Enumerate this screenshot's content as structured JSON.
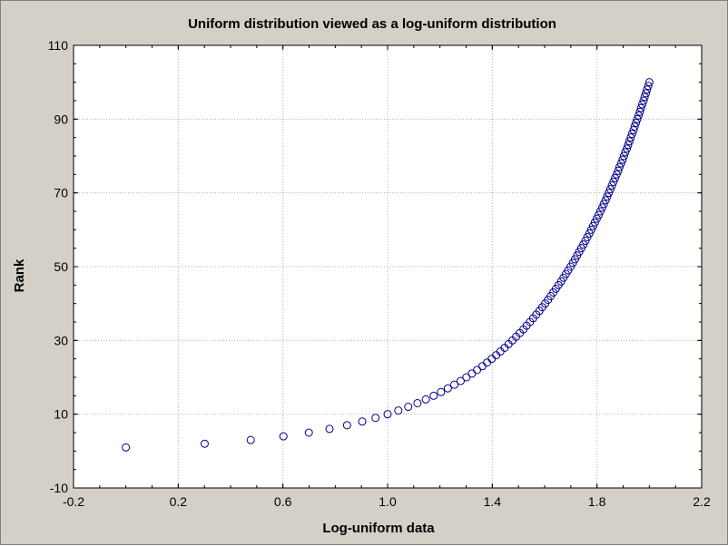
{
  "chart_data": {
    "type": "scatter",
    "title": "Uniform distribution viewed as a log-uniform distribution",
    "xlabel": "Log-uniform data",
    "ylabel": "Rank",
    "xlim": [
      -0.2,
      2.2
    ],
    "ylim": [
      -10,
      110
    ],
    "x_ticks": [
      "-0.2",
      "0.2",
      "0.6",
      "1.0",
      "1.4",
      "1.8",
      "2.2"
    ],
    "y_ticks": [
      "-10",
      "10",
      "30",
      "50",
      "70",
      "90",
      "110"
    ],
    "x_tick_values": [
      -0.2,
      0.2,
      0.6,
      1.0,
      1.4,
      1.8,
      2.2
    ],
    "y_tick_values": [
      -10,
      10,
      30,
      50,
      70,
      90,
      110
    ],
    "grid": true,
    "marker": "open-circle",
    "marker_color": "#00008b",
    "series": [
      {
        "x": [
          0.0,
          0.301,
          0.477,
          0.602,
          0.699,
          0.778,
          0.845,
          0.903,
          0.954,
          1.0,
          1.041,
          1.079,
          1.114,
          1.146,
          1.176,
          1.204,
          1.23,
          1.255,
          1.279,
          1.301,
          1.322,
          1.342,
          1.362,
          1.38,
          1.398,
          1.415,
          1.431,
          1.447,
          1.462,
          1.477,
          1.491,
          1.505,
          1.519,
          1.531,
          1.544,
          1.556,
          1.568,
          1.58,
          1.591,
          1.602,
          1.613,
          1.623,
          1.633,
          1.643,
          1.653,
          1.663,
          1.672,
          1.681,
          1.69,
          1.699,
          1.708,
          1.716,
          1.724,
          1.732,
          1.74,
          1.748,
          1.756,
          1.763,
          1.771,
          1.778,
          1.785,
          1.792,
          1.799,
          1.806,
          1.813,
          1.82,
          1.826,
          1.833,
          1.839,
          1.845,
          1.851,
          1.857,
          1.863,
          1.869,
          1.875,
          1.881,
          1.886,
          1.892,
          1.898,
          1.903,
          1.908,
          1.914,
          1.919,
          1.924,
          1.929,
          1.934,
          1.94,
          1.944,
          1.949,
          1.954,
          1.959,
          1.964,
          1.968,
          1.973,
          1.978,
          1.982,
          1.987,
          1.991,
          1.996,
          2.0
        ],
        "y": [
          1,
          2,
          3,
          4,
          5,
          6,
          7,
          8,
          9,
          10,
          11,
          12,
          13,
          14,
          15,
          16,
          17,
          18,
          19,
          20,
          21,
          22,
          23,
          24,
          25,
          26,
          27,
          28,
          29,
          30,
          31,
          32,
          33,
          34,
          35,
          36,
          37,
          38,
          39,
          40,
          41,
          42,
          43,
          44,
          45,
          46,
          47,
          48,
          49,
          50,
          51,
          52,
          53,
          54,
          55,
          56,
          57,
          58,
          59,
          60,
          61,
          62,
          63,
          64,
          65,
          66,
          67,
          68,
          69,
          70,
          71,
          72,
          73,
          74,
          75,
          76,
          77,
          78,
          79,
          80,
          81,
          82,
          83,
          84,
          85,
          86,
          87,
          88,
          89,
          90,
          91,
          92,
          93,
          94,
          95,
          96,
          97,
          98,
          99,
          100
        ]
      }
    ]
  }
}
